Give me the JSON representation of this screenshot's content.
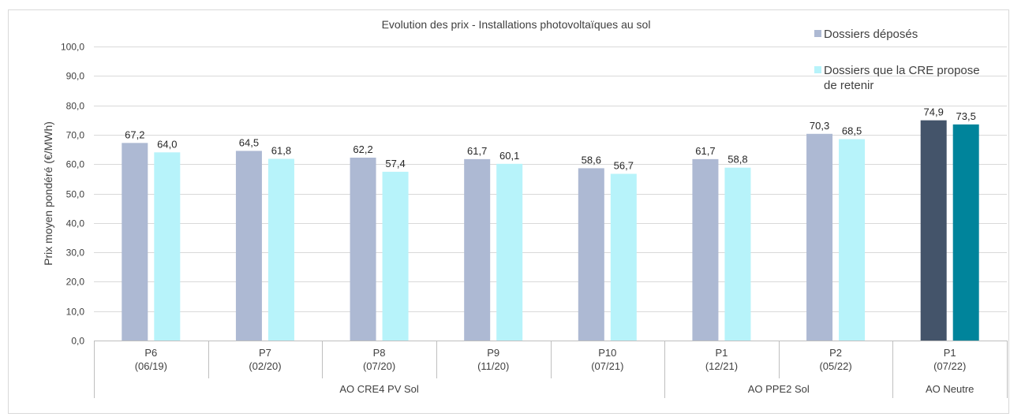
{
  "chart_data": {
    "type": "bar",
    "title": "Evolution des prix - Installations photovoltaïques au sol",
    "xlabel": "",
    "ylabel": "Prix moyen pondéré (€/MWh)",
    "ylim": [
      0,
      100
    ],
    "yticks": [
      "0,0",
      "10,0",
      "20,0",
      "30,0",
      "40,0",
      "50,0",
      "60,0",
      "70,0",
      "80,0",
      "90,0",
      "100,0"
    ],
    "grid": true,
    "legend_position": "top-right",
    "categories": [
      {
        "label_top": "P6",
        "label_bottom": "(06/19)"
      },
      {
        "label_top": "P7",
        "label_bottom": "(02/20)"
      },
      {
        "label_top": "P8",
        "label_bottom": "(07/20)"
      },
      {
        "label_top": "P9",
        "label_bottom": "(11/20)"
      },
      {
        "label_top": "P10",
        "label_bottom": "(07/21)"
      },
      {
        "label_top": "P1",
        "label_bottom": "(12/21)"
      },
      {
        "label_top": "P2",
        "label_bottom": "(05/22)"
      },
      {
        "label_top": "P1",
        "label_bottom": "(07/22)"
      }
    ],
    "groups": [
      {
        "label": "AO CRE4 PV Sol",
        "start": 0,
        "end": 4
      },
      {
        "label": "AO PPE2 Sol",
        "start": 5,
        "end": 6
      },
      {
        "label": "AO Neutre",
        "start": 7,
        "end": 7
      }
    ],
    "series": [
      {
        "name": "Dossiers déposés",
        "values": [
          67.2,
          64.5,
          62.2,
          61.7,
          58.6,
          61.7,
          70.3,
          74.9
        ],
        "labels": [
          "67,2",
          "64,5",
          "62,2",
          "61,7",
          "58,6",
          "61,7",
          "70,3",
          "74,9"
        ],
        "color": "#adb9d3",
        "highlight_color": "#44546a"
      },
      {
        "name": "Dossiers que la CRE propose de retenir",
        "name_lines": [
          "Dossiers que la CRE propose",
          "de retenir"
        ],
        "values": [
          64.0,
          61.8,
          57.4,
          60.1,
          56.7,
          58.8,
          68.5,
          73.5
        ],
        "labels": [
          "64,0",
          "61,8",
          "57,4",
          "60,1",
          "56,7",
          "58,8",
          "68,5",
          "73,5"
        ],
        "color": "#b7f3fa",
        "highlight_color": "#00849b"
      }
    ],
    "highlight_category_index": 7,
    "gridline_color": "#d9d9d9",
    "axis_color": "#bfbfbf"
  }
}
